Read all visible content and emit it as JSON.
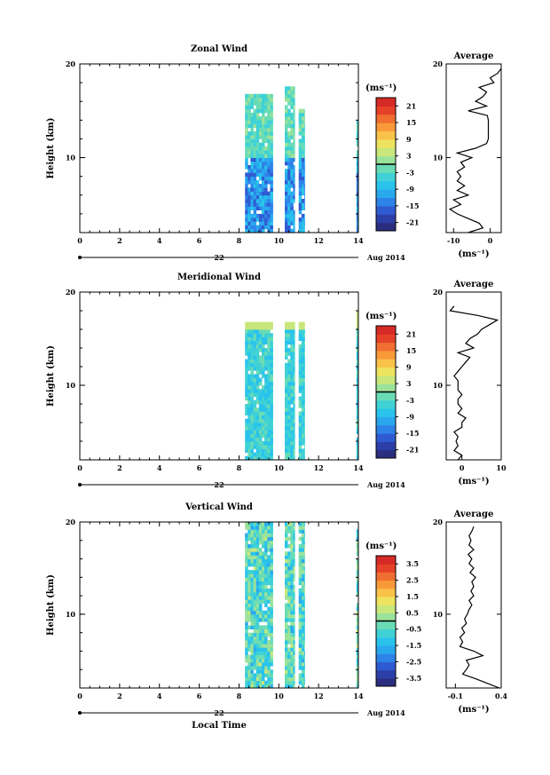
{
  "chart_data": [
    {
      "type": "heatmap",
      "title": "Zonal Wind",
      "ylabel": "Height (km)",
      "xlim": [
        0,
        14
      ],
      "ylim": [
        2,
        20
      ],
      "xticks": [
        "0",
        "2",
        "4",
        "6",
        "8",
        "10",
        "12",
        "14"
      ],
      "yticks": [
        "10",
        "20"
      ],
      "date_tick": "22",
      "date_right": "Aug 2014",
      "colorbar": {
        "unit": "(ms⁻¹)",
        "ticks": [
          "21",
          "15",
          "9",
          "3",
          "-3",
          "-9",
          "-15",
          "-21"
        ],
        "range": [
          -24,
          24
        ]
      },
      "average": {
        "title": "Average",
        "xlim": [
          -12,
          3
        ],
        "xticks": [
          "-10",
          "0"
        ],
        "xlabel": "(ms⁻¹)",
        "yticks": [
          "10",
          "20"
        ],
        "profile": [
          [
            2,
            -6
          ],
          [
            2.5,
            -2
          ],
          [
            3,
            -3
          ],
          [
            3.5,
            -6
          ],
          [
            4,
            -9
          ],
          [
            4.5,
            -11
          ],
          [
            5,
            -8
          ],
          [
            5.5,
            -10
          ],
          [
            6,
            -6
          ],
          [
            6.5,
            -9
          ],
          [
            7,
            -7
          ],
          [
            7.5,
            -9
          ],
          [
            8,
            -8
          ],
          [
            8.5,
            -9
          ],
          [
            9,
            -7
          ],
          [
            9.5,
            -8
          ],
          [
            10,
            -5
          ],
          [
            10.5,
            -9
          ],
          [
            11,
            -4
          ],
          [
            11.5,
            -1
          ],
          [
            12,
            -0.5
          ],
          [
            12.5,
            -0.5
          ],
          [
            13,
            -0.5
          ],
          [
            13.5,
            -0.5
          ],
          [
            14,
            -0.5
          ],
          [
            14.5,
            -0.8
          ],
          [
            15,
            -6
          ],
          [
            15.5,
            -1
          ],
          [
            16,
            -4
          ],
          [
            16.5,
            -2
          ],
          [
            17,
            -1
          ],
          [
            17.5,
            -3
          ],
          [
            18,
            1
          ],
          [
            18.5,
            0
          ],
          [
            19,
            2
          ],
          [
            19.5,
            3
          ]
        ]
      },
      "segments": [
        {
          "t": [
            8.3,
            9.7
          ],
          "top": 16.5
        },
        {
          "t": [
            10.3,
            10.8
          ],
          "top": 17.5
        },
        {
          "t": [
            11.0,
            11.3
          ],
          "top": 15
        },
        {
          "t": [
            13.9,
            14.0
          ],
          "top": 14
        }
      ]
    },
    {
      "type": "heatmap",
      "title": "Meridional Wind",
      "ylabel": "Height (km)",
      "xlim": [
        0,
        14
      ],
      "ylim": [
        2,
        20
      ],
      "xticks": [
        "0",
        "2",
        "4",
        "6",
        "8",
        "10",
        "12",
        "14"
      ],
      "yticks": [
        "10",
        "20"
      ],
      "date_tick": "22",
      "date_right": "Aug 2014",
      "colorbar": {
        "unit": "(ms⁻¹)",
        "ticks": [
          "21",
          "15",
          "9",
          "3",
          "-3",
          "-9",
          "-15",
          "-21"
        ],
        "range": [
          -24,
          24
        ]
      },
      "average": {
        "title": "Average",
        "xlim": [
          -4,
          10
        ],
        "xticks": [
          "0",
          "10"
        ],
        "xlabel": "(ms⁻¹)",
        "yticks": [
          "10",
          "20"
        ],
        "profile": [
          [
            2,
            -1
          ],
          [
            2.5,
            0
          ],
          [
            3,
            -2
          ],
          [
            3.5,
            -1
          ],
          [
            4,
            -1.5
          ],
          [
            4.5,
            -1
          ],
          [
            5,
            -2
          ],
          [
            5.5,
            0
          ],
          [
            6,
            0
          ],
          [
            6.5,
            1
          ],
          [
            7,
            -1
          ],
          [
            7.5,
            0
          ],
          [
            8,
            -1
          ],
          [
            8.5,
            -1
          ],
          [
            9,
            0
          ],
          [
            9.5,
            -1
          ],
          [
            10,
            -1
          ],
          [
            10.5,
            -1
          ],
          [
            11,
            -2
          ],
          [
            11.5,
            -1
          ],
          [
            12,
            0
          ],
          [
            12.5,
            1
          ],
          [
            13,
            2
          ],
          [
            13.5,
            -1
          ],
          [
            14,
            3
          ],
          [
            14.5,
            1
          ],
          [
            15,
            2
          ],
          [
            15.5,
            4
          ],
          [
            16,
            5
          ],
          [
            16.5,
            7
          ],
          [
            17,
            9
          ],
          [
            17.5,
            4
          ],
          [
            18,
            -3
          ],
          [
            18.5,
            -2
          ]
        ]
      },
      "segments": [
        {
          "t": [
            8.3,
            9.7
          ],
          "top": 16.5
        },
        {
          "t": [
            10.3,
            10.8
          ],
          "top": 16.5
        },
        {
          "t": [
            11.0,
            11.3
          ],
          "top": 16.5
        },
        {
          "t": [
            13.9,
            14.0
          ],
          "top": 18
        }
      ]
    },
    {
      "type": "heatmap",
      "title": "Vertical Wind",
      "ylabel": "Height (km)",
      "xlabel": "Local Time",
      "xlim": [
        0,
        14
      ],
      "ylim": [
        2,
        20
      ],
      "xticks": [
        "0",
        "2",
        "4",
        "6",
        "8",
        "10",
        "12",
        "14"
      ],
      "yticks": [
        "10",
        "20"
      ],
      "date_tick": "22",
      "date_right": "Aug 2014",
      "colorbar": {
        "unit": "(ms⁻¹)",
        "ticks": [
          "3.5",
          "2.5",
          "1.5",
          "0.5",
          "-0.5",
          "-1.5",
          "-2.5",
          "-3.5"
        ],
        "range": [
          -4,
          4
        ]
      },
      "average": {
        "title": "Average",
        "xlim": [
          -0.2,
          0.4
        ],
        "xticks": [
          "-0.1",
          "0.4"
        ],
        "xlabel": "(ms⁻¹)",
        "yticks": [
          "10",
          "20"
        ],
        "profile": [
          [
            2,
            0.38
          ],
          [
            2.5,
            0.25
          ],
          [
            3,
            0.12
          ],
          [
            3.5,
            -0.02
          ],
          [
            4,
            0.02
          ],
          [
            4.5,
            0.05
          ],
          [
            5,
            0.02
          ],
          [
            5.5,
            0.2
          ],
          [
            6,
            0.1
          ],
          [
            6.5,
            -0.05
          ],
          [
            7,
            -0.02
          ],
          [
            7.5,
            -0.05
          ],
          [
            8,
            0.0
          ],
          [
            8.5,
            -0.03
          ],
          [
            9,
            0.02
          ],
          [
            9.5,
            0.0
          ],
          [
            10,
            0.03
          ],
          [
            10.5,
            0.05
          ],
          [
            11,
            0.08
          ],
          [
            11.5,
            0.05
          ],
          [
            12,
            0.1
          ],
          [
            12.5,
            0.07
          ],
          [
            13,
            0.1
          ],
          [
            13.5,
            0.08
          ],
          [
            14,
            0.12
          ],
          [
            14.5,
            0.06
          ],
          [
            15,
            0.1
          ],
          [
            15.5,
            0.05
          ],
          [
            16,
            0.08
          ],
          [
            16.5,
            0.04
          ],
          [
            17,
            0.1
          ],
          [
            17.5,
            0.05
          ],
          [
            18,
            0.07
          ],
          [
            18.5,
            0.05
          ],
          [
            19,
            0.08
          ],
          [
            19.5,
            0.1
          ]
        ]
      },
      "segments": [
        {
          "t": [
            8.3,
            9.7
          ],
          "top": 20
        },
        {
          "t": [
            10.3,
            10.8
          ],
          "top": 20
        },
        {
          "t": [
            11.0,
            11.3
          ],
          "top": 20
        },
        {
          "t": [
            13.9,
            14.0
          ],
          "top": 19
        }
      ]
    }
  ]
}
